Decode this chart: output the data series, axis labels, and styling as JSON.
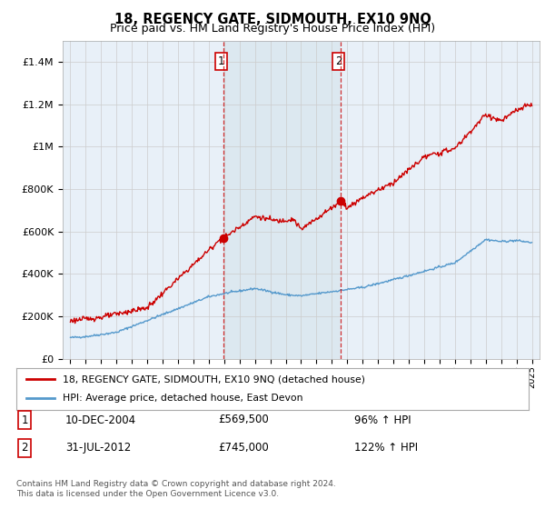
{
  "title": "18, REGENCY GATE, SIDMOUTH, EX10 9NQ",
  "subtitle": "Price paid vs. HM Land Registry's House Price Index (HPI)",
  "hpi_label": "HPI: Average price, detached house, East Devon",
  "property_label": "18, REGENCY GATE, SIDMOUTH, EX10 9NQ (detached house)",
  "sale1_date": "10-DEC-2004",
  "sale1_price": 569500,
  "sale1_pct": "96% ↑ HPI",
  "sale2_date": "31-JUL-2012",
  "sale2_price": 745000,
  "sale2_pct": "122% ↑ HPI",
  "sale1_year": 2004.95,
  "sale2_year": 2012.58,
  "ylabel_ticks": [
    "£0",
    "£200K",
    "£400K",
    "£600K",
    "£800K",
    "£1M",
    "£1.2M",
    "£1.4M"
  ],
  "ylabel_values": [
    0,
    200000,
    400000,
    600000,
    800000,
    1000000,
    1200000,
    1400000
  ],
  "xlim": [
    1994.5,
    2025.5
  ],
  "ylim": [
    0,
    1500000
  ],
  "footer": "Contains HM Land Registry data © Crown copyright and database right 2024.\nThis data is licensed under the Open Government Licence v3.0.",
  "background_color": "#ffffff",
  "chart_bg_color": "#e8f0f8",
  "hpi_color": "#5599cc",
  "property_color": "#cc0000",
  "vline_color": "#cc0000",
  "grid_color": "#cccccc",
  "between_bg_color": "#dce8f0"
}
